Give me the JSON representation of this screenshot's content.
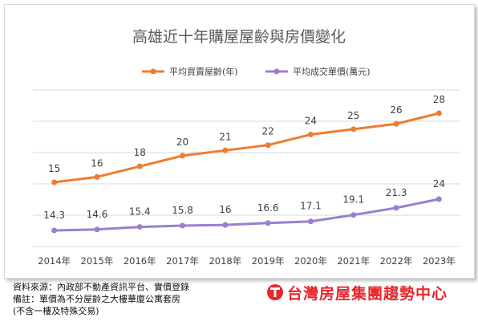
{
  "colors": {
    "orange": "#ed7d31",
    "purple": "#9b7fcf",
    "grid": "#d9d9d9",
    "brand": "#e8262b"
  },
  "chart_data": {
    "type": "line",
    "title": "高雄近十年購屋屋齡與房價變化",
    "legend_placement": "top",
    "grid": true,
    "categories": [
      "2014年",
      "2015年",
      "2016年",
      "2017年",
      "2018年",
      "2019年",
      "2020年",
      "2021年",
      "2022年",
      "2023年"
    ],
    "series": [
      {
        "name": "平均買賣屋齡(年)",
        "color": "#ed7d31",
        "values": [
          15,
          16,
          18,
          20,
          21,
          22,
          24,
          25,
          26,
          28
        ],
        "labels": [
          "15",
          "16",
          "18",
          "20",
          "21",
          "22",
          "24",
          "25",
          "26",
          "28"
        ]
      },
      {
        "name": "平均成交單價(萬元)",
        "color": "#9b7fcf",
        "values": [
          14.3,
          14.6,
          15.4,
          15.8,
          16,
          16.6,
          17.1,
          19.1,
          21.3,
          24
        ],
        "labels": [
          "14.3",
          "14.6",
          "15.4",
          "15.8",
          "16",
          "16.6",
          "17.1",
          "19.1",
          "21.3",
          "24"
        ]
      }
    ]
  },
  "footer": {
    "source": "資料來源：內政部不動產資訊平台、實價登錄",
    "note": "備註：單價為不分屋齡之大樓華廈公寓套房",
    "note2": "(不含一樓及特殊交易)",
    "brand": "台灣房屋集團趨勢中心"
  }
}
